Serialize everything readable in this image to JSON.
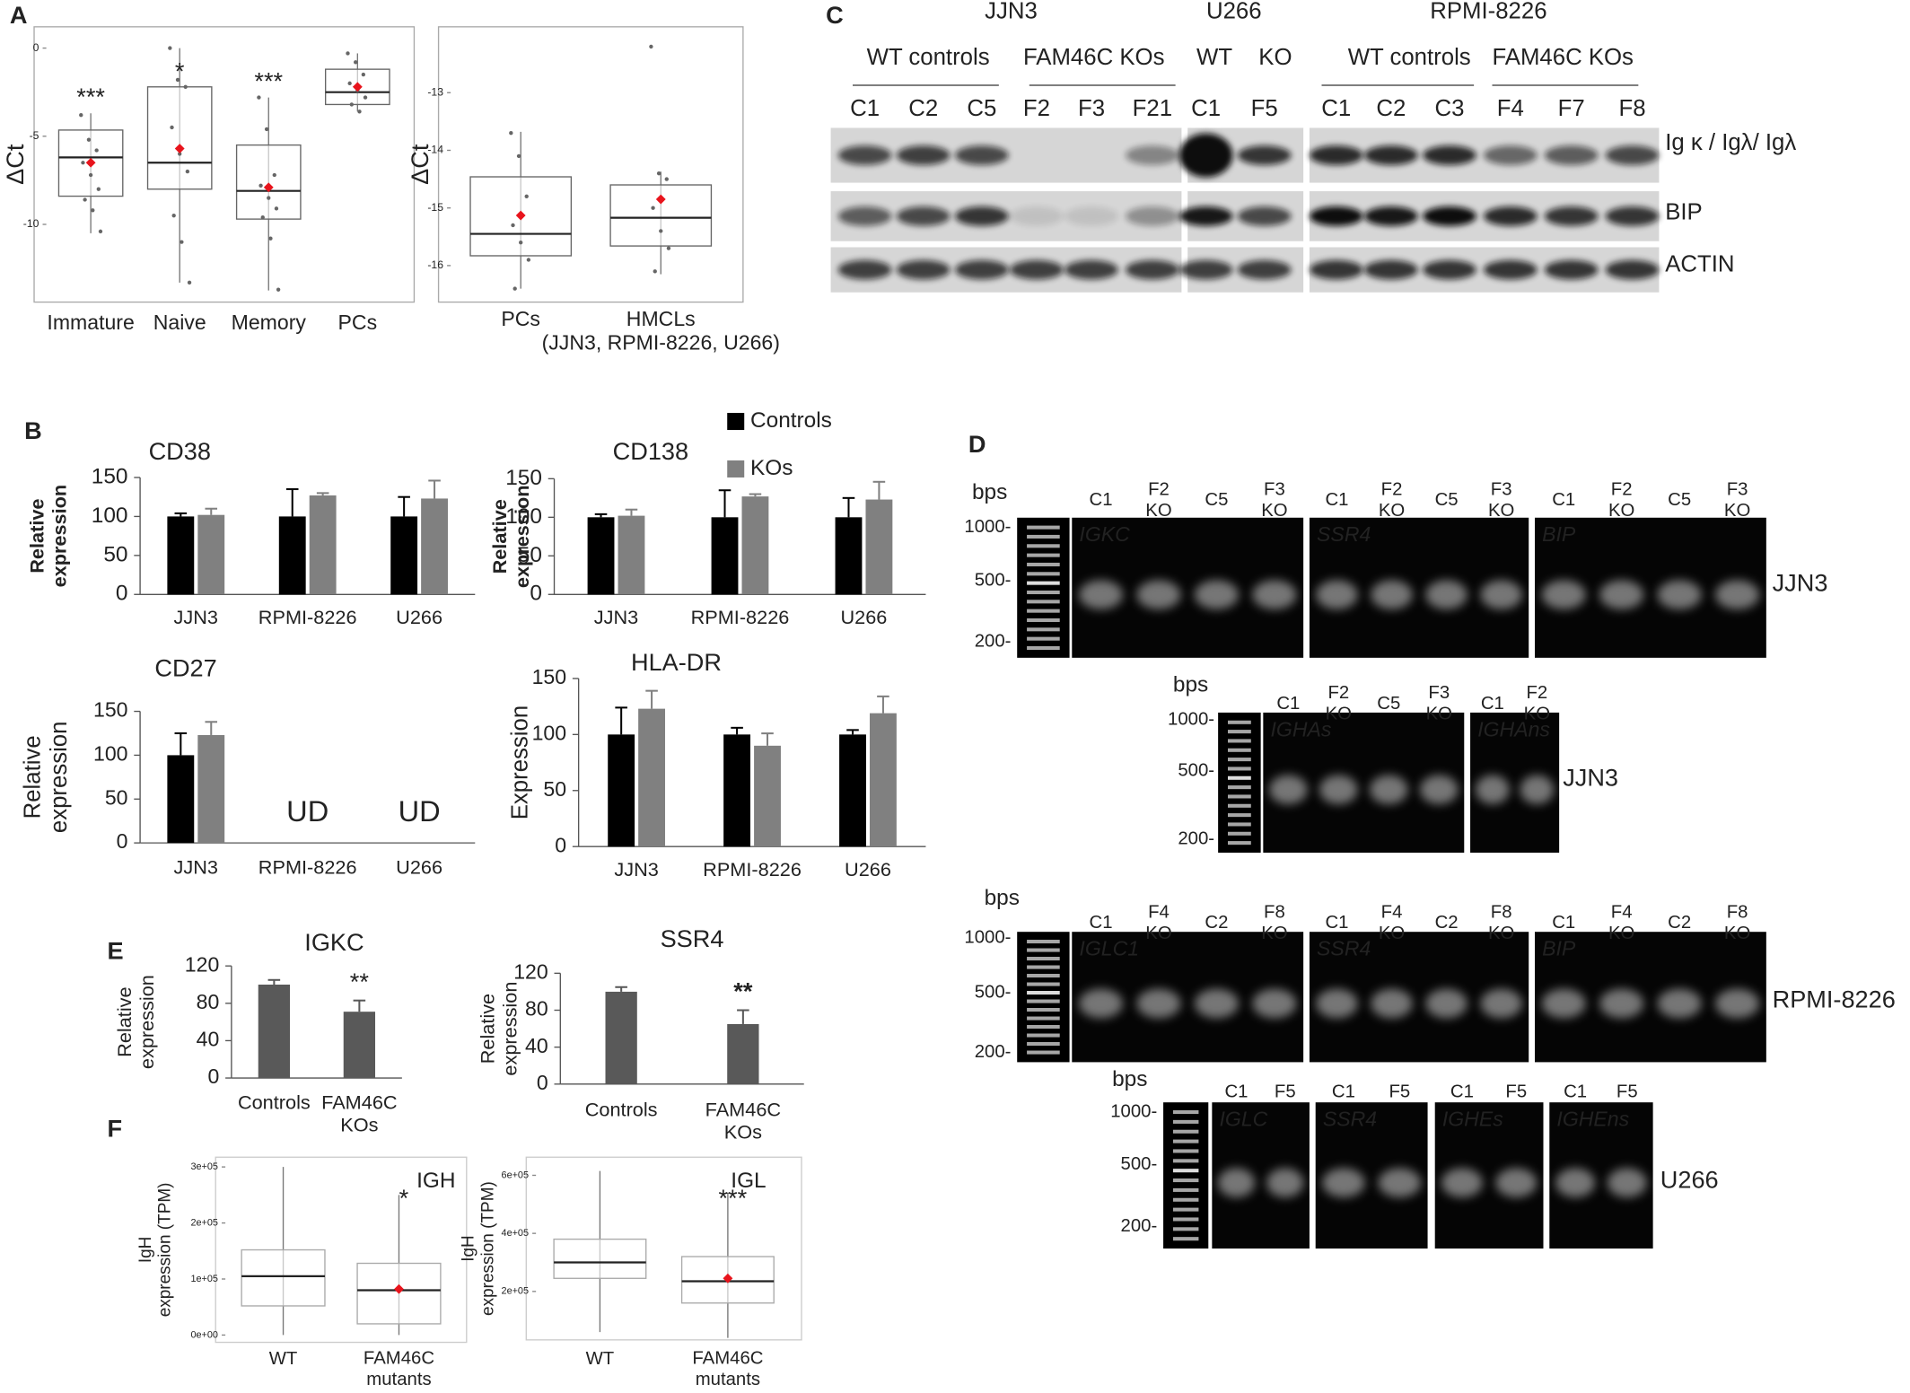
{
  "panel_labels": [
    "A",
    "B",
    "C",
    "D",
    "E",
    "F"
  ],
  "chart_data": [
    {
      "type": "boxplot",
      "ylabel": "ΔCt",
      "categories": [
        "Immature",
        "Naive",
        "Memory",
        "PCs"
      ],
      "boxes": [
        {
          "min": -10.5,
          "q1": -8.4,
          "median": -6.2,
          "q3": -4.65,
          "max": -3.7,
          "mean": -6.5
        },
        {
          "min": -13.3,
          "q1": -8.0,
          "median": -6.5,
          "q3": -2.2,
          "max": 0,
          "mean": -5.7
        },
        {
          "min": -13.75,
          "q1": -9.7,
          "median": -8.1,
          "q3": -5.5,
          "max": -2.8,
          "mean": -7.9
        },
        {
          "min": -3.6,
          "q1": -3.2,
          "median": -2.5,
          "q3": -1.2,
          "max": -0.3,
          "mean": -2.2
        }
      ],
      "points": [
        [
          -3.8,
          -5.2,
          -5.8,
          -6.5,
          -7.2,
          -8.0,
          -8.6,
          -9.2,
          -10.4
        ],
        [
          0,
          -1.8,
          -2.2,
          -4.5,
          -6.0,
          -7.0,
          -9.5,
          -11.0,
          -13.3
        ],
        [
          -2.8,
          -4.6,
          -7.2,
          -7.8,
          -8.5,
          -9.1,
          -9.6,
          -10.8,
          -13.7
        ],
        [
          -0.3,
          -0.8,
          -1.5,
          -2.0,
          -2.4,
          -2.8,
          -3.2,
          -3.6
        ]
      ],
      "annotations": [
        "***",
        "*",
        "***",
        null
      ],
      "mean_color": "#e8141c",
      "ylim": [
        -14.2,
        1.0
      ],
      "yticks": [
        0,
        -5,
        -10
      ]
    },
    {
      "type": "boxplot",
      "ylabel": "ΔCt",
      "categories": [
        "PCs",
        "HMCLs (JJN3, RPMI-8226,  U266)"
      ],
      "boxes": [
        {
          "min": -16.4,
          "q1": -15.83,
          "median": -15.45,
          "q3": -14.46,
          "max": -13.68,
          "mean": -15.13
        },
        {
          "min": -16.15,
          "q1": -15.66,
          "median": -15.17,
          "q3": -14.6,
          "max": -14.37,
          "mean": -14.85
        }
      ],
      "points": [
        [
          -13.7,
          -14.1,
          -14.8,
          -15.3,
          -15.6,
          -15.9,
          -16.4
        ],
        [
          -12.2,
          -14.4,
          -14.5,
          -15.0,
          -15.4,
          -15.7,
          -16.1
        ]
      ],
      "mean_color": "#e8141c",
      "ylim": [
        -16.57,
        -11.92
      ],
      "yticks": [
        -13,
        -14,
        -15,
        -16
      ]
    },
    {
      "type": "bar",
      "title": "CD38",
      "ylabel": "Relative expression",
      "categories": [
        "JJN3",
        "RPMI-8226",
        "U266"
      ],
      "series": [
        {
          "name": "Controls",
          "color": "#000000",
          "values": [
            100,
            100,
            100
          ],
          "errors": [
            4,
            35,
            25
          ]
        },
        {
          "name": "KOs",
          "color": "#808080",
          "values": [
            102,
            127,
            123
          ],
          "errors": [
            8,
            3,
            23
          ]
        }
      ],
      "ylim": [
        0,
        150
      ],
      "yticks": [
        0,
        50,
        100,
        150
      ]
    },
    {
      "type": "bar",
      "title": "CD138",
      "ylabel": "Relative expression",
      "categories": [
        "JJN3",
        "RPMI-8226",
        "U266"
      ],
      "series": [
        {
          "color": "#000000",
          "values": [
            100,
            100,
            100
          ],
          "errors": [
            4,
            35,
            25
          ]
        },
        {
          "color": "#808080",
          "values": [
            102,
            127,
            123
          ],
          "errors": [
            8,
            3,
            23
          ]
        }
      ],
      "ylim": [
        0,
        150
      ],
      "yticks": [
        0,
        50,
        100,
        150
      ]
    },
    {
      "type": "bar",
      "title": "CD27",
      "ylabel": "Relative expression",
      "categories": [
        "JJN3",
        "RPMI-8226",
        "U266"
      ],
      "series": [
        {
          "color": "#000000",
          "values": [
            100,
            null,
            null
          ],
          "errors": [
            25,
            null,
            null
          ]
        },
        {
          "color": "#808080",
          "values": [
            123,
            null,
            null
          ],
          "errors": [
            15,
            null,
            null
          ]
        }
      ],
      "annotations": [
        null,
        "UD",
        "UD"
      ],
      "ylim": [
        0,
        150
      ],
      "yticks": [
        0,
        50,
        100,
        150
      ]
    },
    {
      "type": "bar",
      "title": "HLA-DR",
      "ylabel": "Expression",
      "categories": [
        "JJN3",
        "RPMI-8226",
        "U266"
      ],
      "series": [
        {
          "color": "#000000",
          "values": [
            100,
            100,
            100
          ],
          "errors": [
            24,
            6,
            4
          ]
        },
        {
          "color": "#808080",
          "values": [
            123,
            90,
            119
          ],
          "errors": [
            16,
            11,
            15
          ]
        }
      ],
      "ylim": [
        0,
        150
      ],
      "yticks": [
        0,
        50,
        100,
        150
      ]
    },
    {
      "type": "bar",
      "title": "IGKC",
      "ylabel": "Relative expression",
      "categories": [
        "Controls",
        "FAM46C KOs"
      ],
      "values": [
        100,
        71
      ],
      "errors": [
        5,
        12
      ],
      "color": "#595959",
      "annotations": [
        null,
        "**"
      ],
      "ylim": [
        0,
        120
      ],
      "yticks": [
        0,
        40,
        80,
        120
      ]
    },
    {
      "type": "bar",
      "title": "SSR4",
      "ylabel": "Relative expression",
      "categories": [
        "Controls",
        "FAM46C KOs"
      ],
      "values": [
        100,
        65
      ],
      "errors": [
        5,
        15
      ],
      "color": "#595959",
      "annotations": [
        null,
        "**"
      ],
      "ylim": [
        0,
        120
      ],
      "yticks": [
        0,
        40,
        80,
        120
      ]
    },
    {
      "type": "boxplot",
      "ylabel": "IgH expression (TPM)",
      "categories": [
        "WT",
        "FAM46C mutants"
      ],
      "boxes": [
        {
          "min": 0,
          "q1": 52000,
          "median": 105000,
          "q3": 152000,
          "max": 300000,
          "mean": null
        },
        {
          "min": 0,
          "q1": 20000,
          "median": 80000,
          "q3": 128000,
          "max": 250000,
          "mean": 82000
        }
      ],
      "annotations": [
        null,
        "*"
      ],
      "series_label": "IGH",
      "mean_color": "#e8141c",
      "ylim": [
        -13000,
        317400
      ],
      "yticks": [
        {
          "value": 0,
          "label": "0e+00"
        },
        {
          "value": 100000,
          "label": "1e+05"
        },
        {
          "value": 200000,
          "label": "2e+05"
        },
        {
          "value": 300000,
          "label": "3e+05"
        }
      ]
    },
    {
      "type": "boxplot",
      "ylabel": "IgH expression (TPM)",
      "categories": [
        "WT",
        "FAM46C mutants"
      ],
      "boxes": [
        {
          "min": 60000,
          "q1": 245000,
          "median": 300000,
          "q3": 380000,
          "max": 615000,
          "mean": null
        },
        {
          "min": 40000,
          "q1": 160000,
          "median": 235000,
          "q3": 320000,
          "max": 540000,
          "mean": 245000
        }
      ],
      "annotations": [
        null,
        "***"
      ],
      "series_label": "IGL",
      "mean_color": "#e8141c",
      "ylim": [
        33000,
        662500
      ],
      "yticks": [
        {
          "value": 200000,
          "label": "2e+05"
        },
        {
          "value": 400000,
          "label": "4e+05"
        },
        {
          "value": 600000,
          "label": "6e+05"
        }
      ]
    }
  ],
  "blot": {
    "cell_lines": [
      "JJN3",
      "U266",
      "RPMI-8226"
    ],
    "groups": [
      "WT controls",
      "FAM46C KOs",
      "WT",
      "KO",
      "WT controls",
      "FAM46C KOs"
    ],
    "lanes": [
      "C1",
      "C2",
      "C5",
      "F2",
      "F3",
      "F21",
      "C1",
      "F5",
      "C1",
      "C2",
      "C3",
      "F4",
      "F7",
      "F8"
    ],
    "rows": [
      "Ig κ / Igλ/ Igλ",
      "BIP",
      "ACTIN"
    ]
  },
  "gels": [
    {
      "bps": "bps",
      "ladder": [
        "1000-",
        "500-",
        "200-"
      ],
      "cell_line": "JJN3",
      "sections": [
        {
          "name": "IGKC",
          "lanes": [
            "C1",
            "F2 KO",
            "C5",
            "F3 KO"
          ]
        },
        {
          "name": "SSR4",
          "lanes": [
            "C1",
            "F2 KO",
            "C5",
            "F3 KO"
          ]
        },
        {
          "name": "BIP",
          "lanes": [
            "C1",
            "F2 KO",
            "C5",
            "F3 KO"
          ]
        }
      ]
    },
    {
      "bps": "bps",
      "ladder": [
        "1000-",
        "500-",
        "200-"
      ],
      "cell_line": "JJN3",
      "sections": [
        {
          "name": "IGHAs",
          "lanes": [
            "C1",
            "F2 KO",
            "C5",
            "F3 KO"
          ]
        },
        {
          "name": "IGHAns",
          "lanes": [
            "C1",
            "F2 KO"
          ]
        }
      ]
    },
    {
      "bps": "bps",
      "ladder": [
        "1000-",
        "500-",
        "200-"
      ],
      "cell_line": "RPMI-8226",
      "sections": [
        {
          "name": "IGLC1",
          "lanes": [
            "C1",
            "F4 KO",
            "C2",
            "F8 KO"
          ]
        },
        {
          "name": "SSR4",
          "lanes": [
            "C1",
            "F4 KO",
            "C2",
            "F8 KO"
          ]
        },
        {
          "name": "BIP",
          "lanes": [
            "C1",
            "F4 KO",
            "C2",
            "F8 KO"
          ]
        }
      ]
    },
    {
      "bps": "bps",
      "ladder": [
        "1000-",
        "500-",
        "200-"
      ],
      "cell_line": "U266",
      "sections": [
        {
          "name": "IGLC",
          "lanes": [
            "C1",
            "F5"
          ]
        },
        {
          "name": "SSR4",
          "lanes": [
            "C1",
            "F5"
          ]
        },
        {
          "name": "IGHEs",
          "lanes": [
            "C1",
            "F5"
          ]
        },
        {
          "name": "IGHEns",
          "lanes": [
            "C1",
            "F5"
          ]
        }
      ]
    }
  ]
}
